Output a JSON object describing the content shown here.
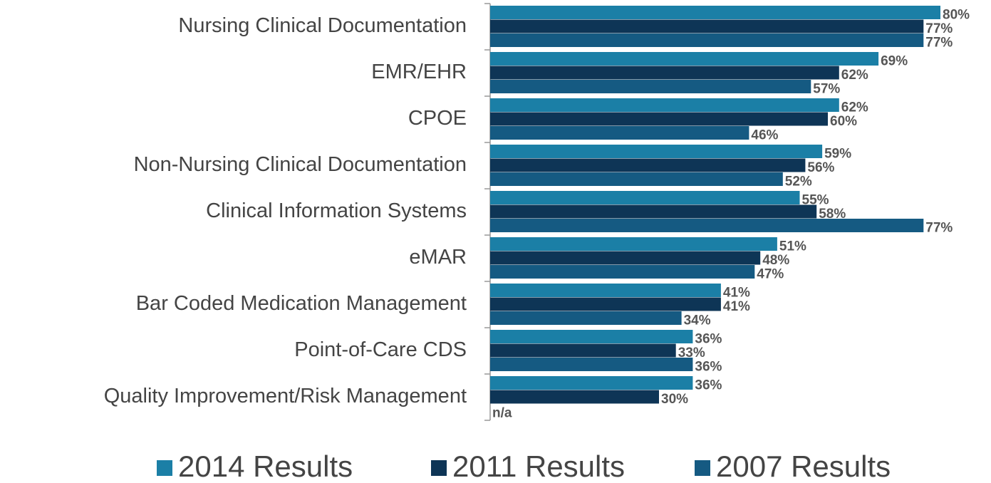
{
  "chart_data": {
    "type": "barh",
    "categories": [
      "Nursing Clinical Documentation",
      "EMR/EHR",
      "CPOE",
      "Non-Nursing Clinical Documentation",
      "Clinical Information Systems",
      "eMAR",
      "Bar Coded Medication Management",
      "Point-of-Care CDS",
      "Quality Improvement/Risk Management"
    ],
    "series": [
      {
        "name": "2014 Results",
        "color": "#1b7fa6",
        "values": [
          80,
          69,
          62,
          59,
          55,
          51,
          41,
          36,
          36
        ],
        "value_labels": [
          "80%",
          "69%",
          "62%",
          "59%",
          "55%",
          "51%",
          "41%",
          "36%",
          "36%"
        ]
      },
      {
        "name": "2011 Results",
        "color": "#0e3556",
        "values": [
          77,
          62,
          60,
          56,
          58,
          48,
          41,
          33,
          30
        ],
        "value_labels": [
          "77%",
          "62%",
          "60%",
          "56%",
          "58%",
          "48%",
          "41%",
          "33%",
          "30%"
        ]
      },
      {
        "name": "2007 Results",
        "color": "#155a82",
        "values": [
          77,
          57,
          46,
          52,
          77,
          47,
          34,
          36,
          null
        ],
        "value_labels": [
          "77%",
          "57%",
          "46%",
          "52%",
          "77%",
          "47%",
          "34%",
          "36%",
          "n/a"
        ]
      }
    ],
    "legend": "bottom"
  }
}
